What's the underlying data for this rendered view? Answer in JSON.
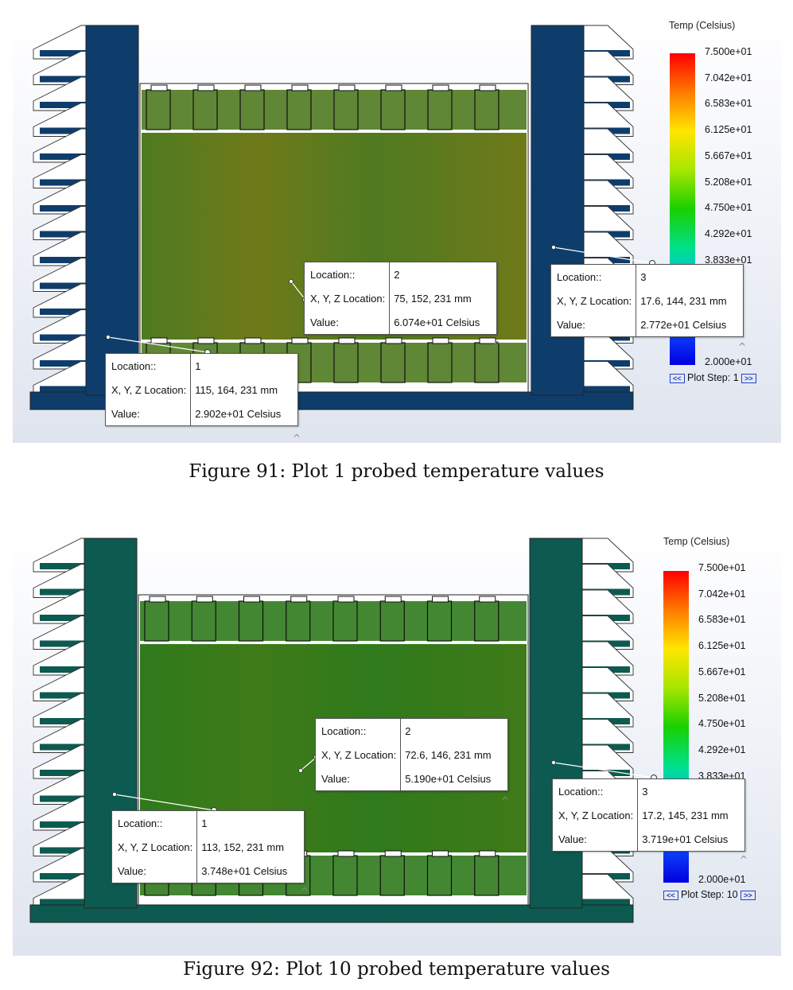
{
  "colors": {
    "fig1_frame": "#0f3d6b",
    "fig2_frame": "#0d5a50",
    "fig1_fill": "#4f7a20",
    "fig2_fill": "#2f7a1c",
    "colorbar_stops": [
      "#ff0000",
      "#ff7a00",
      "#ffe600",
      "#a8e600",
      "#19d000",
      "#00e08a",
      "#00b8ff",
      "#1050ff",
      "#0000e0"
    ]
  },
  "figures": [
    {
      "legend_title": "Temp (Celsius)",
      "ticks": [
        "7.500e+01",
        "7.042e+01",
        "6.583e+01",
        "6.125e+01",
        "5.667e+01",
        "5.208e+01",
        "4.750e+01",
        "4.292e+01",
        "3.833e+01"
      ],
      "bottom_tick": "2.000e+01",
      "plot_step_label": "Plot Step:",
      "plot_step": "1",
      "prev_label": "<<",
      "next_label": ">>",
      "probes": [
        {
          "label_location": "Location::",
          "location": "1",
          "label_xyz": "X, Y, Z Location:",
          "xyz": "115, 164, 231 mm",
          "label_value": "Value:",
          "value": "2.902e+01  Celsius"
        },
        {
          "label_location": "Location::",
          "location": "2",
          "label_xyz": "X, Y, Z Location:",
          "xyz": "75, 152, 231 mm",
          "label_value": "Value:",
          "value": "6.074e+01  Celsius"
        },
        {
          "label_location": "Location::",
          "location": "3",
          "label_xyz": "X, Y, Z Location:",
          "xyz": "17.6, 144, 231 mm",
          "label_value": "Value:",
          "value": "2.772e+01  Celsius"
        }
      ],
      "caption": "Figure 91: Plot 1 probed temperature values"
    },
    {
      "legend_title": "Temp (Celsius)",
      "ticks": [
        "7.500e+01",
        "7.042e+01",
        "6.583e+01",
        "6.125e+01",
        "5.667e+01",
        "5.208e+01",
        "4.750e+01",
        "4.292e+01",
        "3.833e+01"
      ],
      "bottom_tick": "2.000e+01",
      "plot_step_label": "Plot Step:",
      "plot_step": "10",
      "prev_label": "<<",
      "next_label": ">>",
      "probes": [
        {
          "label_location": "Location::",
          "location": "1",
          "label_xyz": "X, Y, Z Location:",
          "xyz": "113, 152, 231 mm",
          "label_value": "Value:",
          "value": "3.748e+01  Celsius"
        },
        {
          "label_location": "Location::",
          "location": "2",
          "label_xyz": "X, Y, Z Location:",
          "xyz": "72.6, 146, 231 mm",
          "label_value": "Value:",
          "value": "5.190e+01  Celsius"
        },
        {
          "label_location": "Location::",
          "location": "3",
          "label_xyz": "X, Y, Z Location:",
          "xyz": "17.2, 145, 231 mm",
          "label_value": "Value:",
          "value": "3.719e+01  Celsius"
        }
      ],
      "caption": "Figure 92: Plot 10 probed temperature values"
    }
  ]
}
